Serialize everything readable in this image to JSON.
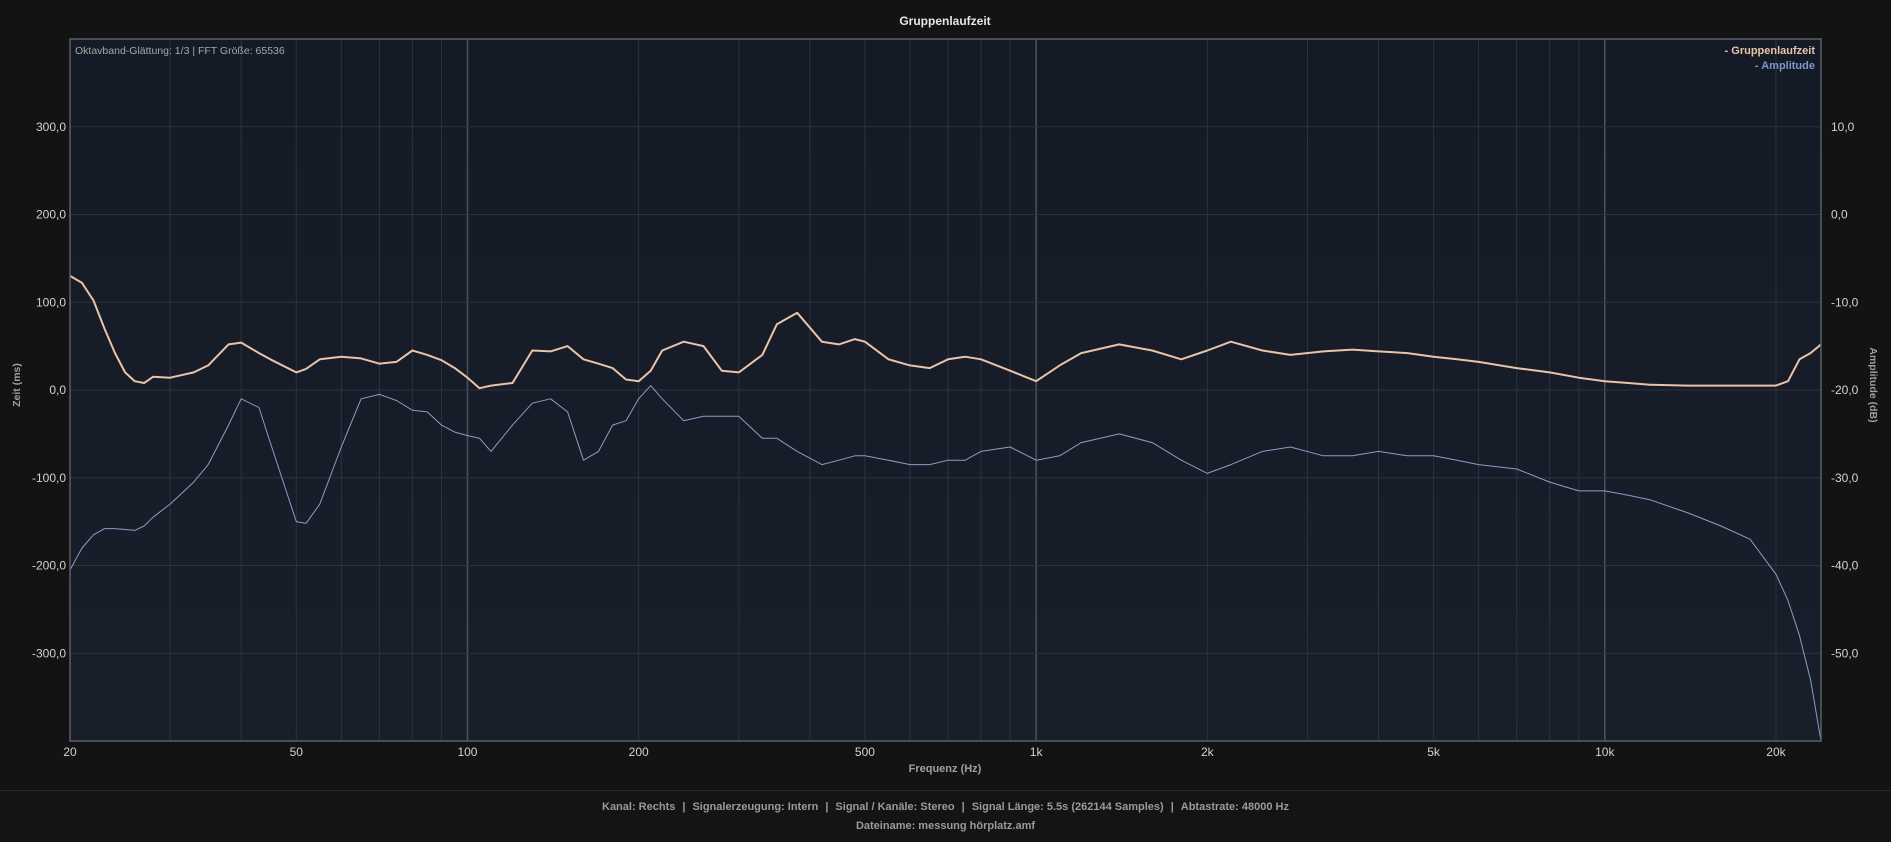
{
  "chart_data": {
    "type": "line",
    "title": "Gruppenlaufzeit",
    "annotation": "Oktavband-Glättung: 1/3 | FFT Größe: 65536",
    "xlabel": "Frequenz (Hz)",
    "ylabel_left": "Zeit (ms)",
    "ylabel_right": "Amplitude (dB)",
    "x_scale": "log",
    "xlim": [
      20,
      24000
    ],
    "ylim_left": [
      -400,
      400
    ],
    "ylim_right": [
      -60,
      20
    ],
    "x_ticks": [
      {
        "value": 20,
        "label": "20"
      },
      {
        "value": 50,
        "label": "50"
      },
      {
        "value": 100,
        "label": "100"
      },
      {
        "value": 200,
        "label": "200"
      },
      {
        "value": 500,
        "label": "500"
      },
      {
        "value": 1000,
        "label": "1k"
      },
      {
        "value": 2000,
        "label": "2k"
      },
      {
        "value": 5000,
        "label": "5k"
      },
      {
        "value": 10000,
        "label": "10k"
      },
      {
        "value": 20000,
        "label": "20k"
      }
    ],
    "y_left_ticks": [
      {
        "value": 300,
        "label": "300,0"
      },
      {
        "value": 200,
        "label": "200,0"
      },
      {
        "value": 100,
        "label": "100,0"
      },
      {
        "value": 0,
        "label": "0,0"
      },
      {
        "value": -100,
        "label": "-100,0"
      },
      {
        "value": -200,
        "label": "-200,0"
      },
      {
        "value": -300,
        "label": "-300,0"
      }
    ],
    "y_right_ticks": [
      {
        "value": 10,
        "label": "10,0"
      },
      {
        "value": 0,
        "label": "0,0"
      },
      {
        "value": -10,
        "label": "-10,0"
      },
      {
        "value": -20,
        "label": "-20,0"
      },
      {
        "value": -30,
        "label": "-30,0"
      },
      {
        "value": -40,
        "label": "-40,0"
      },
      {
        "value": -50,
        "label": "-50,0"
      }
    ],
    "grid": true,
    "legend_position": "top-right",
    "series": [
      {
        "name": "Gruppenlaufzeit",
        "axis": "left",
        "color": "#e8c4a8",
        "x": [
          20,
          21,
          22,
          23,
          24,
          25,
          26,
          27,
          28,
          30,
          33,
          35,
          38,
          40,
          43,
          45,
          50,
          52,
          55,
          60,
          65,
          70,
          75,
          80,
          85,
          90,
          95,
          100,
          105,
          110,
          120,
          130,
          140,
          150,
          160,
          170,
          180,
          190,
          200,
          210,
          220,
          240,
          260,
          280,
          300,
          330,
          350,
          380,
          420,
          450,
          480,
          500,
          550,
          600,
          650,
          700,
          750,
          800,
          900,
          1000,
          1100,
          1200,
          1400,
          1600,
          1800,
          2000,
          2200,
          2500,
          2800,
          3200,
          3600,
          4000,
          4500,
          5000,
          5500,
          6000,
          7000,
          8000,
          9000,
          10000,
          11000,
          12000,
          14000,
          16000,
          18000,
          20000,
          21000,
          22000,
          23000,
          24000
        ],
        "y": [
          130,
          122,
          102,
          70,
          42,
          20,
          10,
          8,
          15,
          14,
          20,
          28,
          52,
          54,
          42,
          35,
          20,
          24,
          35,
          38,
          36,
          30,
          32,
          45,
          40,
          34,
          25,
          14,
          2,
          5,
          8,
          45,
          44,
          50,
          35,
          30,
          25,
          12,
          10,
          22,
          45,
          55,
          50,
          22,
          20,
          40,
          75,
          88,
          55,
          52,
          58,
          55,
          35,
          28,
          25,
          35,
          38,
          35,
          22,
          10,
          28,
          42,
          52,
          45,
          35,
          45,
          55,
          45,
          40,
          44,
          46,
          44,
          42,
          38,
          35,
          32,
          25,
          20,
          14,
          10,
          8,
          6,
          5,
          5,
          5,
          5,
          10,
          35,
          42,
          52
        ]
      },
      {
        "name": "Amplitude",
        "axis": "right",
        "color": "#8f9cc4",
        "x": [
          20,
          21,
          22,
          23,
          24,
          25,
          26,
          27,
          28,
          30,
          33,
          35,
          38,
          40,
          43,
          45,
          50,
          52,
          55,
          60,
          65,
          70,
          75,
          80,
          85,
          90,
          95,
          100,
          105,
          110,
          120,
          130,
          140,
          150,
          160,
          170,
          180,
          190,
          200,
          210,
          220,
          240,
          260,
          280,
          300,
          330,
          350,
          380,
          420,
          450,
          480,
          500,
          550,
          600,
          650,
          700,
          750,
          800,
          900,
          1000,
          1100,
          1200,
          1400,
          1600,
          1800,
          2000,
          2200,
          2500,
          2800,
          3200,
          3600,
          4000,
          4500,
          5000,
          5500,
          6000,
          7000,
          8000,
          9000,
          10000,
          11000,
          12000,
          14000,
          16000,
          18000,
          20000,
          21000,
          22000,
          23000,
          24000
        ],
        "y": [
          -40.5,
          -38,
          -36.5,
          -35.8,
          -35.8,
          -35.9,
          -36,
          -35.5,
          -34.5,
          -33,
          -30.5,
          -28.5,
          -24,
          -21,
          -22,
          -26,
          -35,
          -35.2,
          -33,
          -26.5,
          -21,
          -20.5,
          -21.2,
          -22.3,
          -22.5,
          -24,
          -24.8,
          -25.2,
          -25.5,
          -27,
          -24,
          -21.5,
          -21,
          -22.5,
          -28,
          -27,
          -24,
          -23.5,
          -21,
          -19.5,
          -21,
          -23.5,
          -23,
          -23,
          -23,
          -25.5,
          -25.5,
          -27,
          -28.5,
          -28,
          -27.5,
          -27.5,
          -28,
          -28.5,
          -28.5,
          -28,
          -28,
          -27,
          -26.5,
          -28,
          -27.5,
          -26,
          -25,
          -26,
          -28,
          -29.5,
          -28.5,
          -27,
          -26.5,
          -27.5,
          -27.5,
          -27,
          -27.5,
          -27.5,
          -28,
          -28.5,
          -29,
          -30.5,
          -31.5,
          -31.5,
          -32,
          -32.5,
          -34,
          -35.5,
          -37,
          -41,
          -44,
          -48,
          -53,
          -60
        ]
      }
    ]
  },
  "footer": {
    "kanal": "Kanal: Rechts",
    "signalerzeugung": "Signalerzeugung: Intern",
    "signal_kanaele": "Signal / Kanäle: Stereo",
    "signal_laenge": "Signal Länge: 5.5s (262144 Samples)",
    "abtastrate": "Abtastrate: 48000 Hz",
    "dateiname": "Dateiname: messung hörplatz.amf"
  },
  "colors": {
    "background": "#131313",
    "plot_background": "#151a25",
    "grid": "#2c3240",
    "group_delay": "#e8c4a8",
    "amplitude": "#8f9cc4"
  }
}
